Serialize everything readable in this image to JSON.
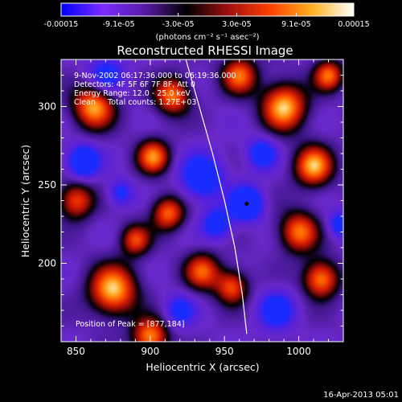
{
  "chart_data": {
    "type": "heatmap",
    "title": "Reconstructed RHESSI Image",
    "colorbar": {
      "tick_labels": [
        "-0.00015",
        "-9.1e-05",
        "-3.0e-05",
        "3.0e-05",
        "9.1e-05",
        "0.00015"
      ],
      "range": [
        -0.00015,
        0.00015
      ],
      "unit_label": "(photons cm⁻² s⁻¹ asec⁻²)",
      "colors": [
        "#0000ff",
        "#7a2cff",
        "#5a1aa8",
        "#000000",
        "#a01010",
        "#ff4000",
        "#ffb020",
        "#ffffff"
      ]
    },
    "xlabel": "Heliocentric X (arcsec)",
    "ylabel": "Heliocentric Y (arcsec)",
    "xlim": [
      840,
      1030
    ],
    "ylim": [
      150,
      330
    ],
    "xticks": [
      850,
      900,
      950,
      1000
    ],
    "yticks": [
      200,
      250,
      300
    ],
    "annotations": {
      "time": "9-Nov-2002 06:17:36.000 to 06:19:36.000",
      "detectors": "Detectors: 4F 5F 6F 7F 8F, Att 0",
      "energy": "Energy Range: 12.0 - 25.0 keV",
      "clean": "Clean     Total counts: 1.27E+03",
      "peak": "Position of Peak = [877,184]"
    },
    "peak_marker": {
      "x": 965,
      "y": 238
    },
    "limb": [
      [
        924,
        330
      ],
      [
        933,
        300
      ],
      [
        942,
        270
      ],
      [
        950,
        240
      ],
      [
        957,
        210
      ],
      [
        962,
        180
      ],
      [
        965,
        155
      ]
    ],
    "blobs": [
      {
        "x": 875,
        "y": 183,
        "r": 16,
        "v": 1.0
      },
      {
        "x": 900,
        "y": 153,
        "r": 12,
        "v": 0.9
      },
      {
        "x": 862,
        "y": 300,
        "r": 14,
        "v": 0.95
      },
      {
        "x": 915,
        "y": 307,
        "r": 12,
        "v": 0.85
      },
      {
        "x": 902,
        "y": 268,
        "r": 11,
        "v": 0.85
      },
      {
        "x": 912,
        "y": 232,
        "r": 11,
        "v": 0.8
      },
      {
        "x": 935,
        "y": 195,
        "r": 12,
        "v": 0.75
      },
      {
        "x": 990,
        "y": 300,
        "r": 15,
        "v": 1.0
      },
      {
        "x": 1010,
        "y": 262,
        "r": 13,
        "v": 0.95
      },
      {
        "x": 1000,
        "y": 220,
        "r": 13,
        "v": 0.85
      },
      {
        "x": 1015,
        "y": 190,
        "r": 12,
        "v": 0.9
      },
      {
        "x": 955,
        "y": 185,
        "r": 11,
        "v": 0.75
      },
      {
        "x": 1020,
        "y": 320,
        "r": 10,
        "v": 0.8
      },
      {
        "x": 960,
        "y": 320,
        "r": 12,
        "v": 0.8
      },
      {
        "x": 850,
        "y": 240,
        "r": 12,
        "v": 0.75
      },
      {
        "x": 890,
        "y": 215,
        "r": 10,
        "v": 0.7
      },
      {
        "x": 965,
        "y": 238,
        "r": 10,
        "v": -1.0
      },
      {
        "x": 855,
        "y": 265,
        "r": 10,
        "v": -0.9
      },
      {
        "x": 935,
        "y": 255,
        "r": 14,
        "v": -0.7
      },
      {
        "x": 975,
        "y": 270,
        "r": 10,
        "v": -0.6
      },
      {
        "x": 985,
        "y": 170,
        "r": 12,
        "v": -0.6
      },
      {
        "x": 870,
        "y": 320,
        "r": 12,
        "v": -0.55
      },
      {
        "x": 945,
        "y": 225,
        "r": 10,
        "v": -0.6
      },
      {
        "x": 1028,
        "y": 225,
        "r": 8,
        "v": -0.6
      },
      {
        "x": 880,
        "y": 245,
        "r": 8,
        "v": -0.5
      },
      {
        "x": 920,
        "y": 170,
        "r": 10,
        "v": -0.5
      }
    ]
  },
  "footer": {
    "date": "16-Apr-2013 05:01"
  }
}
